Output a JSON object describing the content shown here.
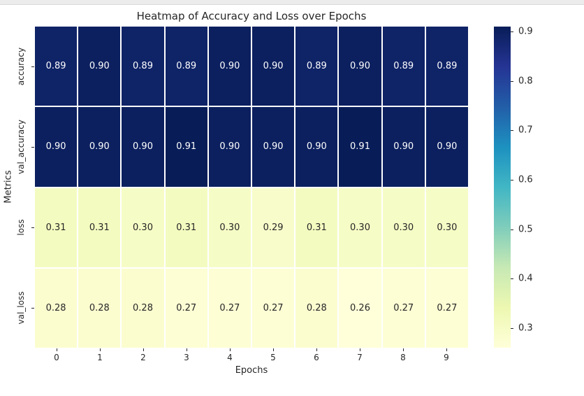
{
  "window": {
    "top_strip_color": "#ececec"
  },
  "chart_data": {
    "type": "heatmap",
    "title": "Heatmap of Accuracy and Loss over Epochs",
    "xlabel": "Epochs",
    "ylabel": "Metrics",
    "x_ticklabels": [
      "0",
      "1",
      "2",
      "3",
      "4",
      "5",
      "6",
      "7",
      "8",
      "9"
    ],
    "y_ticklabels": [
      "accuracy",
      "val_accuracy",
      "loss",
      "val_loss"
    ],
    "series": [
      {
        "name": "accuracy",
        "values": [
          0.89,
          0.9,
          0.89,
          0.89,
          0.9,
          0.9,
          0.89,
          0.9,
          0.89,
          0.89
        ]
      },
      {
        "name": "val_accuracy",
        "values": [
          0.9,
          0.9,
          0.9,
          0.91,
          0.9,
          0.9,
          0.9,
          0.91,
          0.9,
          0.9
        ]
      },
      {
        "name": "loss",
        "values": [
          0.31,
          0.31,
          0.3,
          0.31,
          0.3,
          0.29,
          0.31,
          0.3,
          0.3,
          0.3
        ]
      },
      {
        "name": "val_loss",
        "values": [
          0.28,
          0.28,
          0.28,
          0.27,
          0.27,
          0.27,
          0.28,
          0.26,
          0.27,
          0.27
        ]
      }
    ],
    "value_decimals": 2,
    "vmin": 0.26,
    "vmax": 0.91,
    "colormap": {
      "name": "YlGnBu",
      "stops": [
        "#ffffd9",
        "#edf8b1",
        "#c7e9b4",
        "#7fcdbb",
        "#41b6c4",
        "#1d91c0",
        "#225ea8",
        "#253494",
        "#081d58"
      ]
    },
    "colorbar_ticks": [
      "0.9",
      "0.8",
      "0.7",
      "0.6",
      "0.5",
      "0.4",
      "0.3"
    ],
    "legend_position": "right-colorbar",
    "grid_gap_color": "#ffffff",
    "text_color_dark_cells": "#ffffff",
    "text_color_light_cells": "#262626",
    "axis_text_color": "#262626"
  }
}
